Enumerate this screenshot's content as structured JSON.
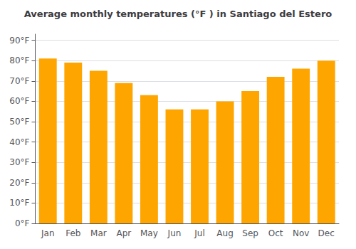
{
  "chart_data": {
    "type": "bar",
    "title": "Average monthly temperatures (°F ) in Santiago del Estero",
    "categories": [
      "Jan",
      "Feb",
      "Mar",
      "Apr",
      "May",
      "Jun",
      "Jul",
      "Aug",
      "Sep",
      "Oct",
      "Nov",
      "Dec"
    ],
    "values": [
      81,
      79,
      75,
      69,
      63,
      56,
      56,
      60,
      65,
      72,
      76,
      80
    ],
    "color": "#FFA500",
    "ylim": [
      0,
      93
    ],
    "yticks": [
      {
        "value": 0,
        "label": "0°F"
      },
      {
        "value": 10,
        "label": "10°F"
      },
      {
        "value": 20,
        "label": "20°F"
      },
      {
        "value": 30,
        "label": "30°F"
      },
      {
        "value": 40,
        "label": "40°F"
      },
      {
        "value": 50,
        "label": "50°F"
      },
      {
        "value": 60,
        "label": "60°F"
      },
      {
        "value": 70,
        "label": "70°F"
      },
      {
        "value": 80,
        "label": "80°F"
      },
      {
        "value": 90,
        "label": "90°F"
      }
    ],
    "grid": true
  }
}
